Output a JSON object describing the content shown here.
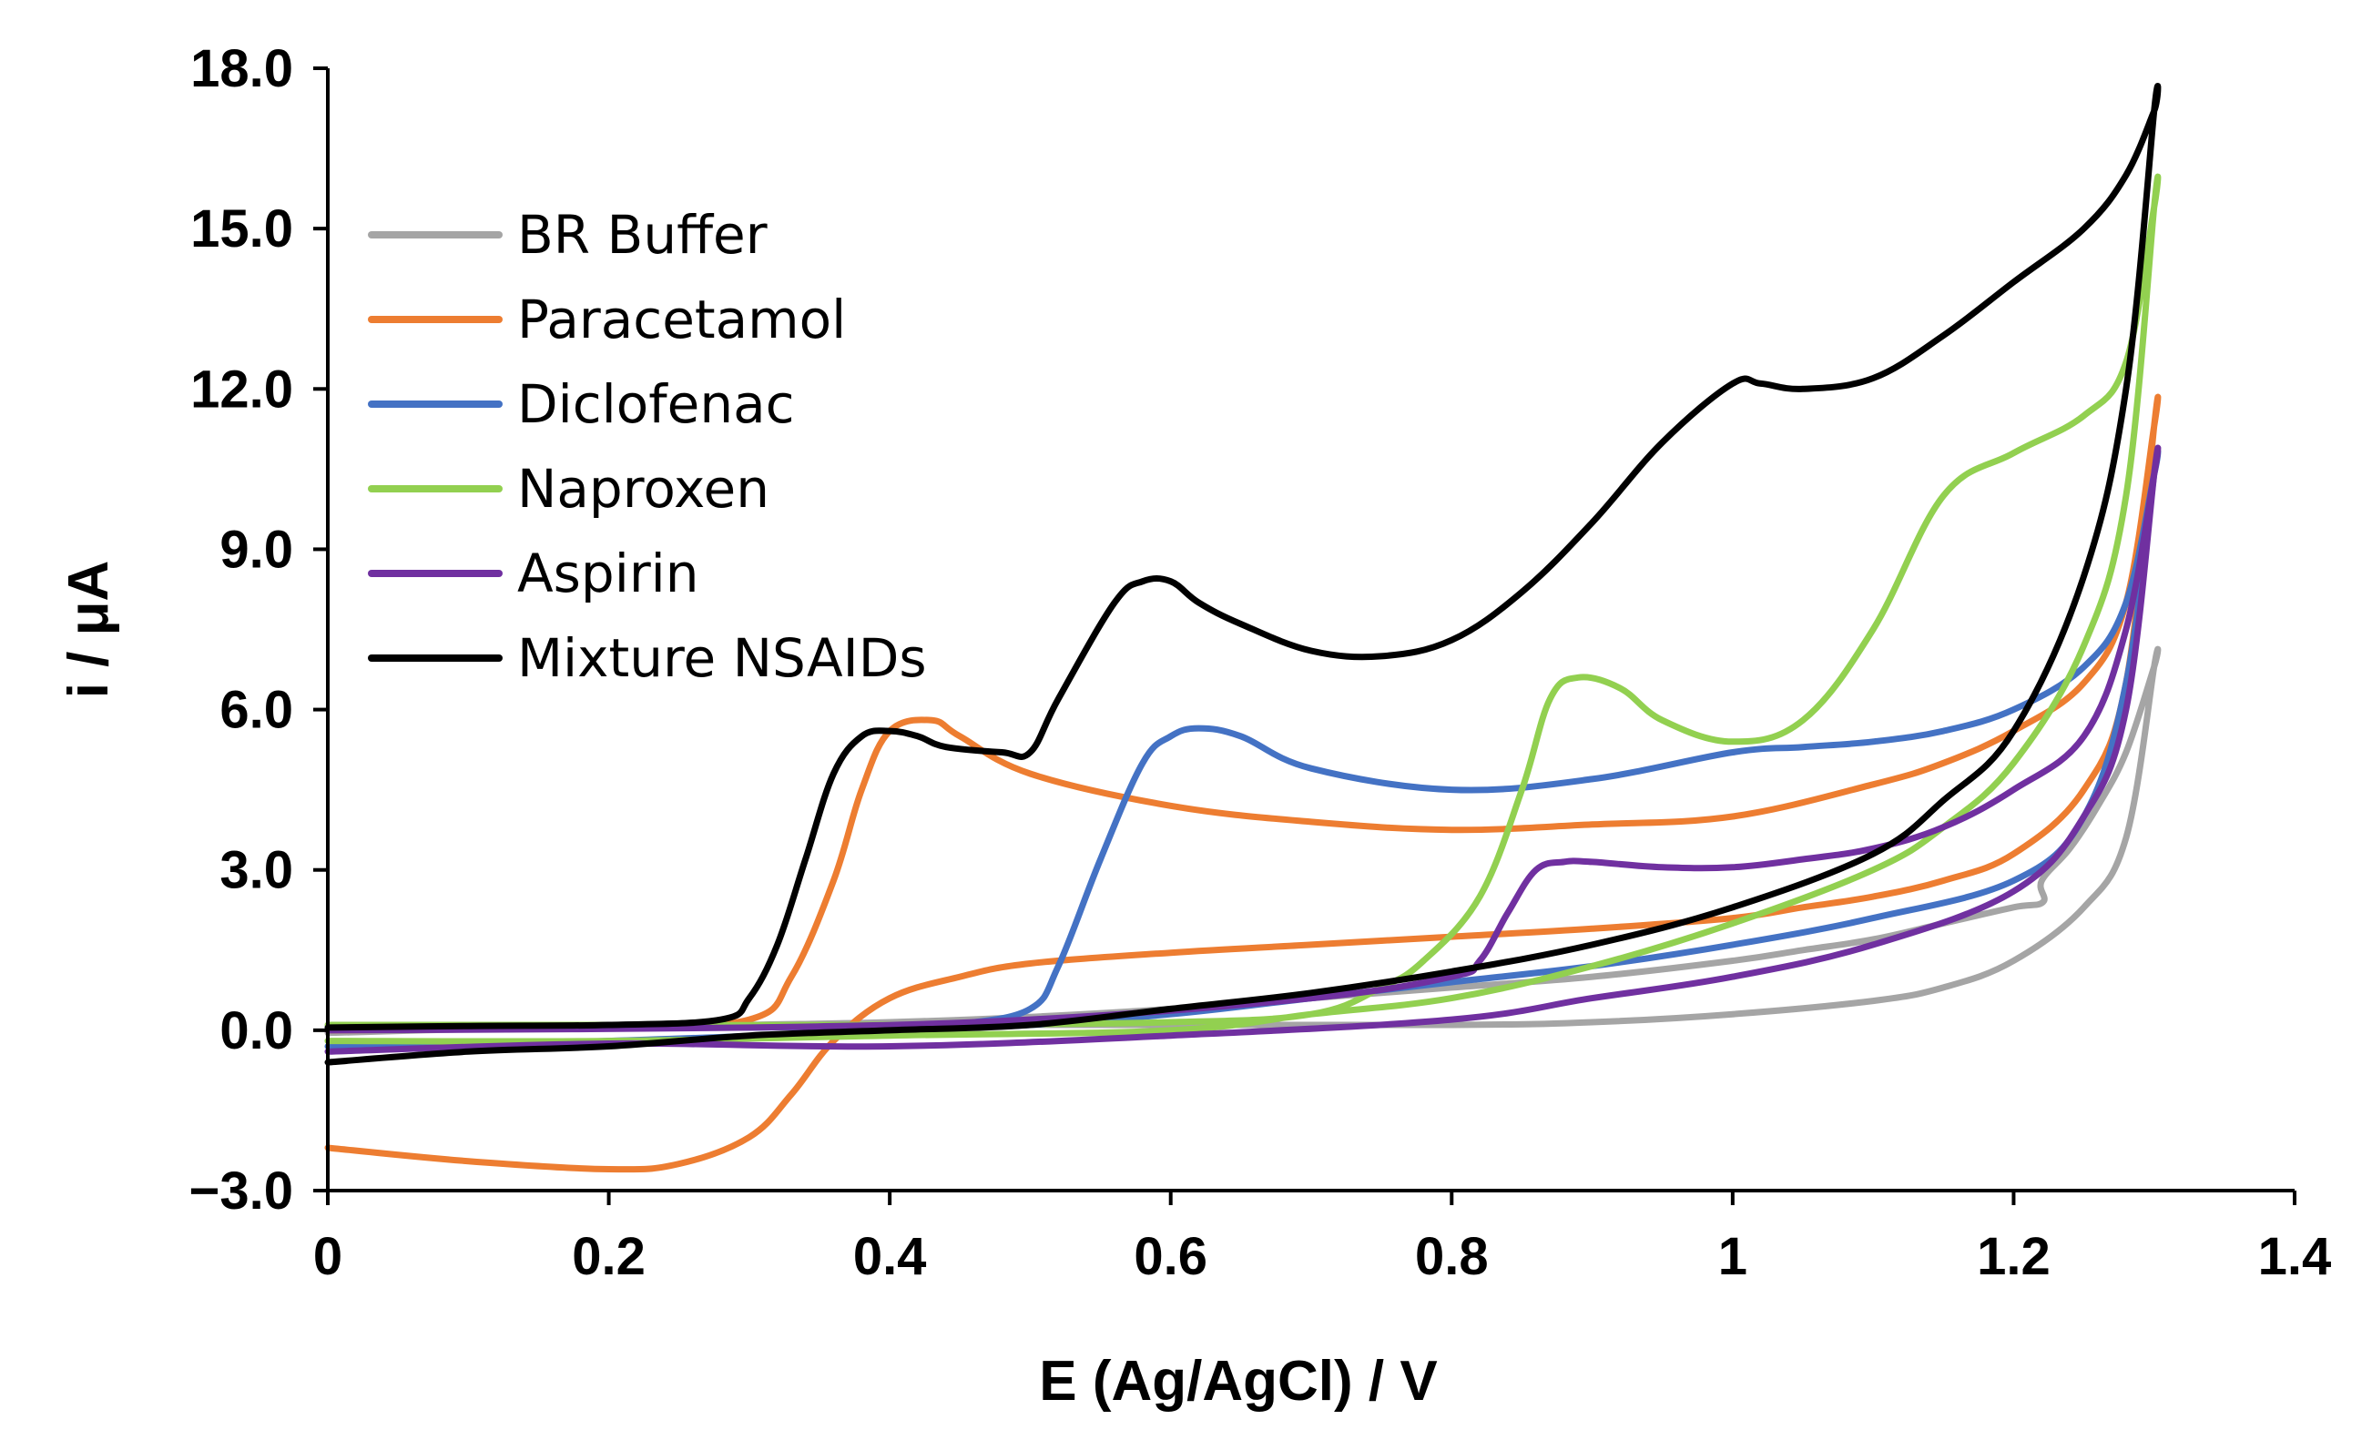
{
  "chart_data": {
    "type": "line",
    "title": "",
    "xlabel": "E (Ag/AgCl) / V",
    "ylabel": "i / μA",
    "xlim": [
      0,
      1.4
    ],
    "ylim": [
      -3.0,
      18.0
    ],
    "x_ticks": [
      0,
      0.2,
      0.4,
      0.6,
      0.8,
      1,
      1.2,
      1.4
    ],
    "x_tick_labels": [
      "0",
      "0.2",
      "0.4",
      "0.6",
      "0.8",
      "1",
      "1.2",
      "1.4"
    ],
    "y_ticks": [
      -3,
      0,
      3,
      6,
      9,
      12,
      15,
      18
    ],
    "y_tick_labels": [
      "−3.0",
      "0.0",
      "3.0",
      "6.0",
      "9.0",
      "12.0",
      "15.0",
      "18.0"
    ],
    "grid": false,
    "legend_position": "top-left",
    "series": [
      {
        "name": "BR Buffer",
        "color": "#A5A5A5",
        "x": [
          0,
          0.2,
          0.4,
          0.6,
          0.8,
          0.9,
          1.0,
          1.1,
          1.15,
          1.2,
          1.25,
          1.28,
          1.3,
          1.3,
          1.28,
          1.26,
          1.24,
          1.22,
          1.221,
          1.2,
          1.15,
          1.1,
          1.05,
          1.0,
          0.9,
          0.8,
          0.7,
          0.6,
          0.5,
          0.4,
          0.3,
          0.2,
          0.1,
          0
        ],
        "y": [
          0.0,
          0.05,
          0.1,
          0.1,
          0.1,
          0.15,
          0.3,
          0.55,
          0.8,
          1.3,
          2.3,
          3.6,
          6.8,
          6.8,
          5.2,
          4.2,
          3.4,
          2.8,
          2.4,
          2.3,
          2.0,
          1.7,
          1.5,
          1.3,
          1.0,
          0.8,
          0.6,
          0.4,
          0.25,
          0.15,
          0.1,
          0.05,
          0.02,
          -0.05
        ]
      },
      {
        "name": "Paracetamol",
        "color": "#ED7D31",
        "x": [
          0,
          0.1,
          0.2,
          0.25,
          0.3,
          0.33,
          0.36,
          0.4,
          0.45,
          0.5,
          0.6,
          0.7,
          0.8,
          0.9,
          1.0,
          1.05,
          1.1,
          1.15,
          1.2,
          1.25,
          1.28,
          1.3,
          1.3,
          1.28,
          1.25,
          1.2,
          1.15,
          1.1,
          1.0,
          0.9,
          0.8,
          0.7,
          0.6,
          0.5,
          0.45,
          0.43,
          0.4,
          0.38,
          0.36,
          0.33,
          0.3,
          0.2,
          0.1,
          0
        ],
        "y": [
          -2.2,
          -2.45,
          -2.6,
          -2.5,
          -2.0,
          -1.2,
          -0.2,
          0.6,
          1.0,
          1.25,
          1.45,
          1.6,
          1.75,
          1.9,
          2.1,
          2.3,
          2.5,
          2.8,
          3.3,
          4.5,
          6.5,
          11.3,
          11.3,
          8.0,
          6.5,
          5.6,
          5.0,
          4.6,
          4.0,
          3.85,
          3.75,
          3.9,
          4.2,
          4.8,
          5.5,
          5.8,
          5.6,
          4.5,
          2.8,
          1.0,
          0.2,
          0.05,
          0.02,
          0.0
        ]
      },
      {
        "name": "Diclofenac",
        "color": "#4472C4",
        "x": [
          0,
          0.2,
          0.4,
          0.5,
          0.6,
          0.7,
          0.8,
          0.9,
          1.0,
          1.1,
          1.2,
          1.25,
          1.28,
          1.3,
          1.3,
          1.28,
          1.25,
          1.2,
          1.15,
          1.1,
          1.05,
          1.0,
          0.9,
          0.8,
          0.7,
          0.65,
          0.62,
          0.6,
          0.58,
          0.55,
          0.52,
          0.5,
          0.45,
          0.4,
          0.3,
          0.2,
          0
        ],
        "y": [
          -0.3,
          -0.2,
          0.0,
          0.1,
          0.3,
          0.6,
          0.9,
          1.2,
          1.6,
          2.1,
          2.8,
          4.0,
          6.5,
          10.4,
          10.4,
          8.0,
          6.8,
          6.0,
          5.6,
          5.4,
          5.3,
          5.2,
          4.7,
          4.5,
          4.9,
          5.5,
          5.65,
          5.5,
          5.0,
          3.2,
          1.2,
          0.4,
          0.12,
          0.08,
          0.05,
          0.05,
          0.05
        ]
      },
      {
        "name": "Naproxen",
        "color": "#92D050",
        "x": [
          0,
          0.2,
          0.4,
          0.6,
          0.7,
          0.8,
          0.9,
          1.0,
          1.1,
          1.15,
          1.2,
          1.25,
          1.28,
          1.3,
          1.3,
          1.28,
          1.25,
          1.2,
          1.15,
          1.1,
          1.05,
          1.0,
          0.95,
          0.92,
          0.89,
          0.87,
          0.85,
          0.82,
          0.78,
          0.75,
          0.7,
          0.6,
          0.4,
          0.2,
          0
        ],
        "y": [
          -0.2,
          -0.2,
          -0.1,
          0.0,
          0.3,
          0.6,
          1.2,
          2.0,
          3.0,
          3.8,
          5.0,
          7.2,
          10.0,
          15.4,
          15.4,
          12.5,
          11.5,
          10.8,
          10.0,
          7.5,
          5.8,
          5.4,
          5.8,
          6.4,
          6.6,
          6.2,
          4.5,
          2.5,
          1.3,
          0.8,
          0.3,
          0.15,
          0.1,
          0.1,
          0.1
        ]
      },
      {
        "name": "Aspirin",
        "color": "#7030A0",
        "x": [
          0,
          0.2,
          0.4,
          0.6,
          0.8,
          0.9,
          1.0,
          1.1,
          1.2,
          1.25,
          1.28,
          1.3,
          1.3,
          1.28,
          1.25,
          1.2,
          1.15,
          1.1,
          1.05,
          1.0,
          0.95,
          0.9,
          0.88,
          0.86,
          0.84,
          0.82,
          0.8,
          0.7,
          0.5,
          0.3,
          0
        ],
        "y": [
          -0.4,
          -0.25,
          -0.3,
          -0.1,
          0.2,
          0.6,
          1.0,
          1.6,
          2.6,
          4.0,
          6.0,
          10.4,
          10.4,
          7.5,
          5.5,
          4.5,
          3.8,
          3.4,
          3.2,
          3.05,
          3.05,
          3.15,
          3.15,
          3.0,
          2.2,
          1.3,
          1.0,
          0.6,
          0.2,
          0.05,
          0.0
        ]
      },
      {
        "name": "Mixture NSAIDs",
        "color": "#000000",
        "x": [
          0,
          0.1,
          0.2,
          0.3,
          0.4,
          0.5,
          0.6,
          0.7,
          0.8,
          0.9,
          1.0,
          1.1,
          1.15,
          1.2,
          1.25,
          1.28,
          1.3,
          1.3,
          1.28,
          1.25,
          1.2,
          1.15,
          1.1,
          1.05,
          1.02,
          1.0,
          0.95,
          0.9,
          0.85,
          0.8,
          0.75,
          0.7,
          0.65,
          0.62,
          0.6,
          0.58,
          0.56,
          0.52,
          0.5,
          0.48,
          0.44,
          0.42,
          0.4,
          0.38,
          0.36,
          0.34,
          0.32,
          0.3,
          0.28,
          0.2,
          0.1,
          0
        ],
        "y": [
          -0.6,
          -0.4,
          -0.3,
          -0.1,
          0.0,
          0.1,
          0.4,
          0.7,
          1.1,
          1.6,
          2.3,
          3.3,
          4.3,
          5.6,
          8.5,
          12.0,
          17.2,
          17.2,
          16.0,
          15.0,
          14.0,
          13.0,
          12.2,
          12.0,
          12.1,
          12.1,
          11.0,
          9.5,
          8.2,
          7.3,
          7.0,
          7.1,
          7.6,
          8.0,
          8.4,
          8.4,
          8.0,
          6.2,
          5.2,
          5.2,
          5.3,
          5.5,
          5.6,
          5.5,
          4.8,
          3.2,
          1.6,
          0.6,
          0.2,
          0.1,
          0.08,
          0.05
        ]
      }
    ]
  }
}
